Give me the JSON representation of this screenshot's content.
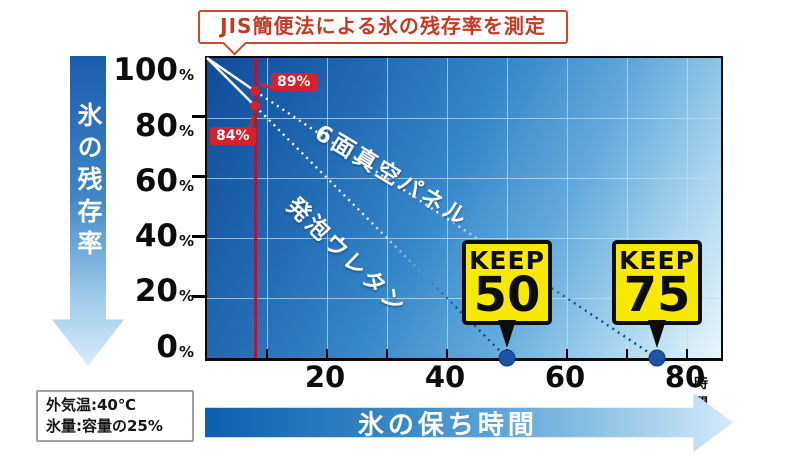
{
  "callout": {
    "text": "JIS簡便法による氷の残存率を測定"
  },
  "y_axis": {
    "arrow_label": "氷の残存率",
    "unit": "%"
  },
  "x_axis": {
    "arrow_label": "氷の保ち時間",
    "unit": "時間"
  },
  "conditions": {
    "line1": "外気温:40℃",
    "line2": "氷量:容量の25%"
  },
  "series_labels": {
    "vacuum": "6面真空パネル",
    "urethane": "発泡ウレタン"
  },
  "badges": {
    "keep50": {
      "word": "KEEP",
      "value": "50",
      "anchor_x": 50
    },
    "keep75": {
      "word": "KEEP",
      "value": "75",
      "anchor_x": 75
    }
  },
  "colors": {
    "plot_dark": "#0f4c9a",
    "plot_light": "#e9f6fd",
    "grid": "#b9def3",
    "accent_red": "#d8202b",
    "measure_line_red": "#b51333",
    "badge_yellow": "#f7ea00",
    "line_navy": "#17498f",
    "endpoint_blue": "#1c55a6",
    "arrow_blue_dark": "#1a5dad",
    "arrow_blue_light": "#d7ecfa"
  },
  "chart_data": {
    "type": "line",
    "title": "JIS簡便法による氷の残存率を測定",
    "xlabel": "氷の保ち時間 (時間)",
    "ylabel": "氷の残存率 (%)",
    "xlim": [
      0,
      85
    ],
    "ylim": [
      0,
      100
    ],
    "x_ticks": [
      20,
      40,
      60,
      80
    ],
    "y_ticks": [
      100,
      80,
      60,
      40,
      20,
      0
    ],
    "grid": true,
    "grid_x_step": 10,
    "grid_y_step": 20,
    "measure_line_x": 8,
    "series": [
      {
        "key": "vacuum-panel",
        "name": "6面真空パネル",
        "x": [
          0,
          8,
          75
        ],
        "y": [
          100,
          89,
          0
        ],
        "keep_hours": 75
      },
      {
        "key": "urethane-foam",
        "name": "発泡ウレタン",
        "x": [
          0,
          8,
          50
        ],
        "y": [
          100,
          84,
          0
        ],
        "keep_hours": 50
      }
    ],
    "annotations": [
      {
        "text": "89%",
        "x": 8,
        "y": 89
      },
      {
        "text": "84%",
        "x": 8,
        "y": 84
      },
      {
        "text": "KEEP 50",
        "x": 50,
        "y": 0
      },
      {
        "text": "KEEP 75",
        "x": 75,
        "y": 0
      }
    ],
    "conditions": [
      "外気温:40℃",
      "氷量:容量の25%"
    ]
  }
}
